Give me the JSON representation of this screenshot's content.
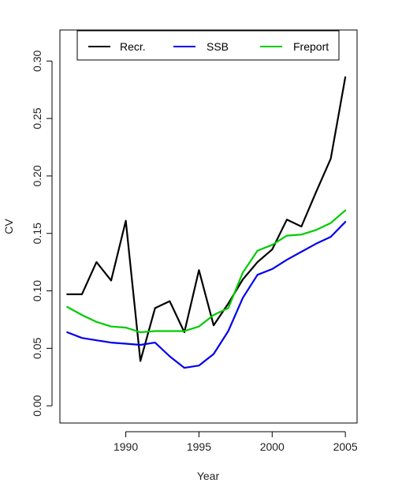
{
  "chart_data": {
    "type": "line",
    "xlabel": "Year",
    "ylabel": "CV",
    "xlim": [
      1985.5,
      2005.8
    ],
    "ylim": [
      -0.015,
      0.327
    ],
    "xticks": [
      1990,
      1995,
      2000,
      2005
    ],
    "yticks": [
      0.0,
      0.05,
      0.1,
      0.15,
      0.2,
      0.25,
      0.3
    ],
    "ytick_labels": [
      "0.00",
      "0.05",
      "0.10",
      "0.15",
      "0.20",
      "0.25",
      "0.30"
    ],
    "grid": false,
    "legend_position": "top",
    "x": [
      1986,
      1987,
      1988,
      1989,
      1990,
      1991,
      1992,
      1993,
      1994,
      1995,
      1996,
      1997,
      1998,
      1999,
      2000,
      2001,
      2002,
      2003,
      2004,
      2005
    ],
    "series": [
      {
        "name": "Recr.",
        "color": "#000000",
        "values": [
          0.097,
          0.097,
          0.125,
          0.109,
          0.161,
          0.039,
          0.085,
          0.091,
          0.064,
          0.118,
          0.07,
          0.089,
          0.11,
          0.125,
          0.136,
          0.162,
          0.156,
          0.186,
          0.215,
          0.286
        ]
      },
      {
        "name": "SSB",
        "color": "#0000ee",
        "values": [
          0.064,
          0.059,
          0.057,
          0.055,
          0.054,
          0.053,
          0.055,
          0.043,
          0.033,
          0.035,
          0.045,
          0.065,
          0.094,
          0.114,
          0.119,
          0.127,
          0.134,
          0.141,
          0.147,
          0.16
        ]
      },
      {
        "name": "Freport",
        "color": "#00cc00",
        "values": [
          0.086,
          0.079,
          0.073,
          0.069,
          0.068,
          0.064,
          0.065,
          0.065,
          0.065,
          0.069,
          0.079,
          0.085,
          0.116,
          0.135,
          0.14,
          0.148,
          0.149,
          0.153,
          0.159,
          0.17
        ]
      }
    ]
  }
}
